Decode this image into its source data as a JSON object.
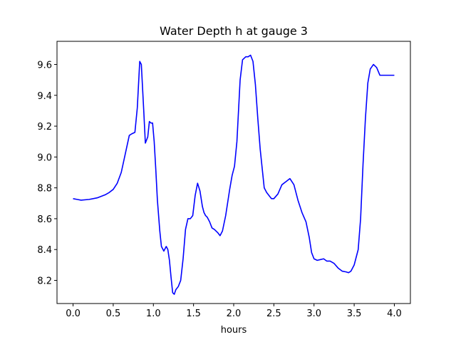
{
  "chart_data": {
    "type": "line",
    "title": "Water Depth h at gauge 3",
    "xlabel": "hours",
    "ylabel": "",
    "xlim": [
      -0.2,
      4.2
    ],
    "ylim": [
      8.05,
      9.75
    ],
    "xticks": [
      0.0,
      0.5,
      1.0,
      1.5,
      2.0,
      2.5,
      3.0,
      3.5,
      4.0
    ],
    "xtick_labels": [
      "0.0",
      "0.5",
      "1.0",
      "1.5",
      "2.0",
      "2.5",
      "3.0",
      "3.5",
      "4.0"
    ],
    "yticks": [
      8.2,
      8.4,
      8.6,
      8.8,
      9.0,
      9.2,
      9.4,
      9.6
    ],
    "ytick_labels": [
      "8.2",
      "8.4",
      "8.6",
      "8.8",
      "9.0",
      "9.2",
      "9.4",
      "9.6"
    ],
    "grid": false,
    "series": [
      {
        "color": "#0000ff",
        "x": [
          0.0,
          0.05,
          0.1,
          0.2,
          0.3,
          0.4,
          0.45,
          0.5,
          0.55,
          0.6,
          0.65,
          0.7,
          0.73,
          0.77,
          0.8,
          0.83,
          0.85,
          0.88,
          0.9,
          0.93,
          0.95,
          0.97,
          0.99,
          1.01,
          1.03,
          1.05,
          1.08,
          1.1,
          1.13,
          1.16,
          1.18,
          1.2,
          1.22,
          1.24,
          1.26,
          1.28,
          1.31,
          1.34,
          1.37,
          1.4,
          1.43,
          1.46,
          1.49,
          1.52,
          1.55,
          1.58,
          1.61,
          1.63,
          1.65,
          1.67,
          1.7,
          1.73,
          1.76,
          1.8,
          1.83,
          1.86,
          1.9,
          1.95,
          1.98,
          2.01,
          2.04,
          2.08,
          2.11,
          2.15,
          2.18,
          2.21,
          2.24,
          2.27,
          2.3,
          2.33,
          2.36,
          2.38,
          2.41,
          2.44,
          2.47,
          2.5,
          2.55,
          2.6,
          2.65,
          2.7,
          2.75,
          2.8,
          2.85,
          2.9,
          2.94,
          2.97,
          3.0,
          3.04,
          3.08,
          3.12,
          3.16,
          3.2,
          3.25,
          3.3,
          3.35,
          3.4,
          3.43,
          3.46,
          3.5,
          3.55,
          3.58,
          3.61,
          3.64,
          3.67,
          3.7,
          3.74,
          3.78,
          3.82,
          3.86,
          3.9,
          3.93,
          3.96,
          3.98,
          4.0
        ],
        "y": [
          8.73,
          8.725,
          8.72,
          8.725,
          8.735,
          8.755,
          8.77,
          8.79,
          8.83,
          8.9,
          9.02,
          9.14,
          9.15,
          9.16,
          9.32,
          9.62,
          9.6,
          9.3,
          9.09,
          9.13,
          9.23,
          9.22,
          9.22,
          9.1,
          8.92,
          8.72,
          8.52,
          8.42,
          8.39,
          8.42,
          8.4,
          8.33,
          8.22,
          8.12,
          8.11,
          8.14,
          8.16,
          8.2,
          8.34,
          8.53,
          8.6,
          8.6,
          8.62,
          8.75,
          8.83,
          8.78,
          8.68,
          8.64,
          8.62,
          8.61,
          8.58,
          8.54,
          8.53,
          8.51,
          8.49,
          8.52,
          8.62,
          8.79,
          8.88,
          8.94,
          9.1,
          9.5,
          9.63,
          9.65,
          9.65,
          9.66,
          9.62,
          9.47,
          9.25,
          9.05,
          8.9,
          8.8,
          8.77,
          8.75,
          8.73,
          8.73,
          8.76,
          8.82,
          8.84,
          8.86,
          8.82,
          8.72,
          8.64,
          8.58,
          8.48,
          8.38,
          8.34,
          8.33,
          8.335,
          8.34,
          8.325,
          8.325,
          8.31,
          8.28,
          8.26,
          8.255,
          8.25,
          8.26,
          8.3,
          8.4,
          8.6,
          8.95,
          9.25,
          9.48,
          9.57,
          9.6,
          9.58,
          9.53,
          9.53,
          9.53,
          9.53,
          9.53,
          9.53,
          9.53
        ]
      }
    ]
  }
}
